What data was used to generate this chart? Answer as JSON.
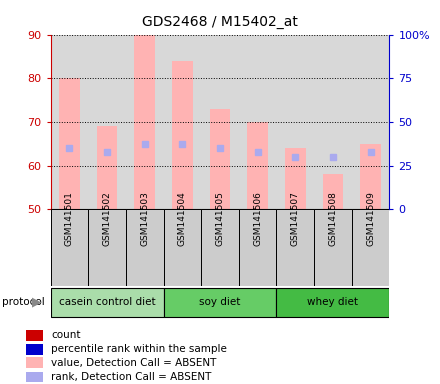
{
  "title": "GDS2468 / M15402_at",
  "samples": [
    "GSM141501",
    "GSM141502",
    "GSM141503",
    "GSM141504",
    "GSM141505",
    "GSM141506",
    "GSM141507",
    "GSM141508",
    "GSM141509"
  ],
  "bar_bottom": 50,
  "pink_bar_tops": [
    80,
    69,
    90,
    84,
    73,
    70,
    64,
    58,
    65
  ],
  "blue_dot_values": [
    64,
    63,
    65,
    65,
    64,
    63,
    62,
    62,
    63
  ],
  "ylim_left": [
    50,
    90
  ],
  "ylim_right": [
    0,
    100
  ],
  "yticks_left": [
    50,
    60,
    70,
    80,
    90
  ],
  "yticks_right": [
    0,
    25,
    50,
    75,
    100
  ],
  "ytick_labels_right": [
    "0",
    "25",
    "50",
    "75",
    "100%"
  ],
  "left_axis_color": "#cc0000",
  "right_axis_color": "#0000cc",
  "pink_color": "#ffb3b3",
  "blue_dot_color": "#aaaaee",
  "protocol_groups": [
    {
      "label": "casein control diet",
      "start": 0,
      "end": 3,
      "color": "#aaddaa"
    },
    {
      "label": "soy diet",
      "start": 3,
      "end": 6,
      "color": "#66cc66"
    },
    {
      "label": "whey diet",
      "start": 6,
      "end": 9,
      "color": "#44bb44"
    }
  ],
  "legend_colors": [
    "#cc0000",
    "#0000cc",
    "#ffb3b3",
    "#aaaaee"
  ],
  "legend_labels": [
    "count",
    "percentile rank within the sample",
    "value, Detection Call = ABSENT",
    "rank, Detection Call = ABSENT"
  ],
  "protocol_label": "protocol",
  "bar_width": 0.55,
  "background_color": "#ffffff",
  "axes_bg": "#d8d8d8",
  "sample_box_bg": "#cccccc",
  "grid_color": "#000000",
  "ytick_fontsize": 8,
  "xtick_fontsize": 6.5,
  "legend_fontsize": 7.5
}
